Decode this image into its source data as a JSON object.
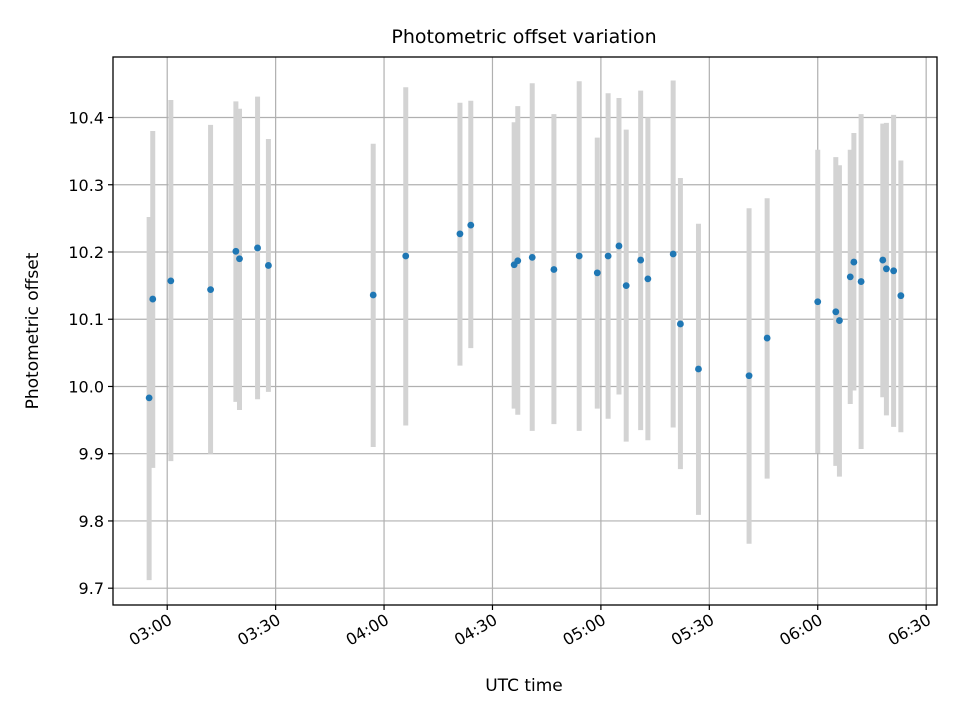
{
  "chart_data": {
    "type": "scatter",
    "title": "Photometric offset variation",
    "xlabel": "UTC time",
    "ylabel": "Photometric offset",
    "x_axis_type": "time",
    "xlim": [
      "02:45",
      "06:33"
    ],
    "ylim": [
      9.675,
      10.49
    ],
    "x_ticks": [
      "03:00",
      "03:30",
      "04:00",
      "04:30",
      "05:00",
      "05:30",
      "06:00",
      "06:30"
    ],
    "y_ticks": [
      9.7,
      9.8,
      9.9,
      10.0,
      10.1,
      10.2,
      10.3,
      10.4
    ],
    "y_tick_labels": [
      "9.7",
      "9.8",
      "9.9",
      "10.0",
      "10.1",
      "10.2",
      "10.3",
      "10.4"
    ],
    "grid": true,
    "marker_color": "#1f77b4",
    "errorbar_color": "#d3d3d3",
    "points": [
      {
        "time": "02:55",
        "y": 9.983,
        "lo": 9.712,
        "hi": 10.252
      },
      {
        "time": "02:56",
        "y": 10.13,
        "lo": 9.879,
        "hi": 10.38
      },
      {
        "time": "03:01",
        "y": 10.157,
        "lo": 9.889,
        "hi": 10.426
      },
      {
        "time": "03:12",
        "y": 10.144,
        "lo": 9.9,
        "hi": 10.389
      },
      {
        "time": "03:19",
        "y": 10.201,
        "lo": 9.977,
        "hi": 10.424
      },
      {
        "time": "03:20",
        "y": 10.19,
        "lo": 9.965,
        "hi": 10.413
      },
      {
        "time": "03:25",
        "y": 10.206,
        "lo": 9.981,
        "hi": 10.431
      },
      {
        "time": "03:28",
        "y": 10.18,
        "lo": 9.992,
        "hi": 10.368
      },
      {
        "time": "03:57",
        "y": 10.136,
        "lo": 9.91,
        "hi": 10.361
      },
      {
        "time": "04:06",
        "y": 10.194,
        "lo": 9.942,
        "hi": 10.445
      },
      {
        "time": "04:21",
        "y": 10.227,
        "lo": 10.031,
        "hi": 10.422
      },
      {
        "time": "04:24",
        "y": 10.24,
        "lo": 10.057,
        "hi": 10.425
      },
      {
        "time": "04:36",
        "y": 10.181,
        "lo": 9.967,
        "hi": 10.393
      },
      {
        "time": "04:37",
        "y": 10.187,
        "lo": 9.958,
        "hi": 10.417
      },
      {
        "time": "04:41",
        "y": 10.192,
        "lo": 9.934,
        "hi": 10.451
      },
      {
        "time": "04:47",
        "y": 10.174,
        "lo": 9.944,
        "hi": 10.405
      },
      {
        "time": "04:54",
        "y": 10.194,
        "lo": 9.934,
        "hi": 10.454
      },
      {
        "time": "04:59",
        "y": 10.169,
        "lo": 9.967,
        "hi": 10.37
      },
      {
        "time": "05:02",
        "y": 10.194,
        "lo": 9.952,
        "hi": 10.436
      },
      {
        "time": "05:05",
        "y": 10.209,
        "lo": 9.988,
        "hi": 10.429
      },
      {
        "time": "05:07",
        "y": 10.15,
        "lo": 9.918,
        "hi": 10.382
      },
      {
        "time": "05:11",
        "y": 10.188,
        "lo": 9.935,
        "hi": 10.44
      },
      {
        "time": "05:13",
        "y": 10.16,
        "lo": 9.92,
        "hi": 10.4
      },
      {
        "time": "05:20",
        "y": 10.197,
        "lo": 9.939,
        "hi": 10.455
      },
      {
        "time": "05:22",
        "y": 10.093,
        "lo": 9.877,
        "hi": 10.31
      },
      {
        "time": "05:27",
        "y": 10.026,
        "lo": 9.809,
        "hi": 10.242
      },
      {
        "time": "05:41",
        "y": 10.016,
        "lo": 9.766,
        "hi": 10.265
      },
      {
        "time": "05:46",
        "y": 10.072,
        "lo": 9.863,
        "hi": 10.28
      },
      {
        "time": "06:00",
        "y": 10.126,
        "lo": 9.901,
        "hi": 10.352
      },
      {
        "time": "06:05",
        "y": 10.111,
        "lo": 9.882,
        "hi": 10.341
      },
      {
        "time": "06:06",
        "y": 10.098,
        "lo": 9.866,
        "hi": 10.329
      },
      {
        "time": "06:09",
        "y": 10.163,
        "lo": 9.974,
        "hi": 10.352
      },
      {
        "time": "06:10",
        "y": 10.185,
        "lo": 9.994,
        "hi": 10.377
      },
      {
        "time": "06:12",
        "y": 10.156,
        "lo": 9.907,
        "hi": 10.405
      },
      {
        "time": "06:18",
        "y": 10.188,
        "lo": 9.984,
        "hi": 10.391
      },
      {
        "time": "06:19",
        "y": 10.175,
        "lo": 9.957,
        "hi": 10.392
      },
      {
        "time": "06:21",
        "y": 10.172,
        "lo": 9.94,
        "hi": 10.404
      },
      {
        "time": "06:23",
        "y": 10.135,
        "lo": 9.932,
        "hi": 10.336
      }
    ]
  }
}
